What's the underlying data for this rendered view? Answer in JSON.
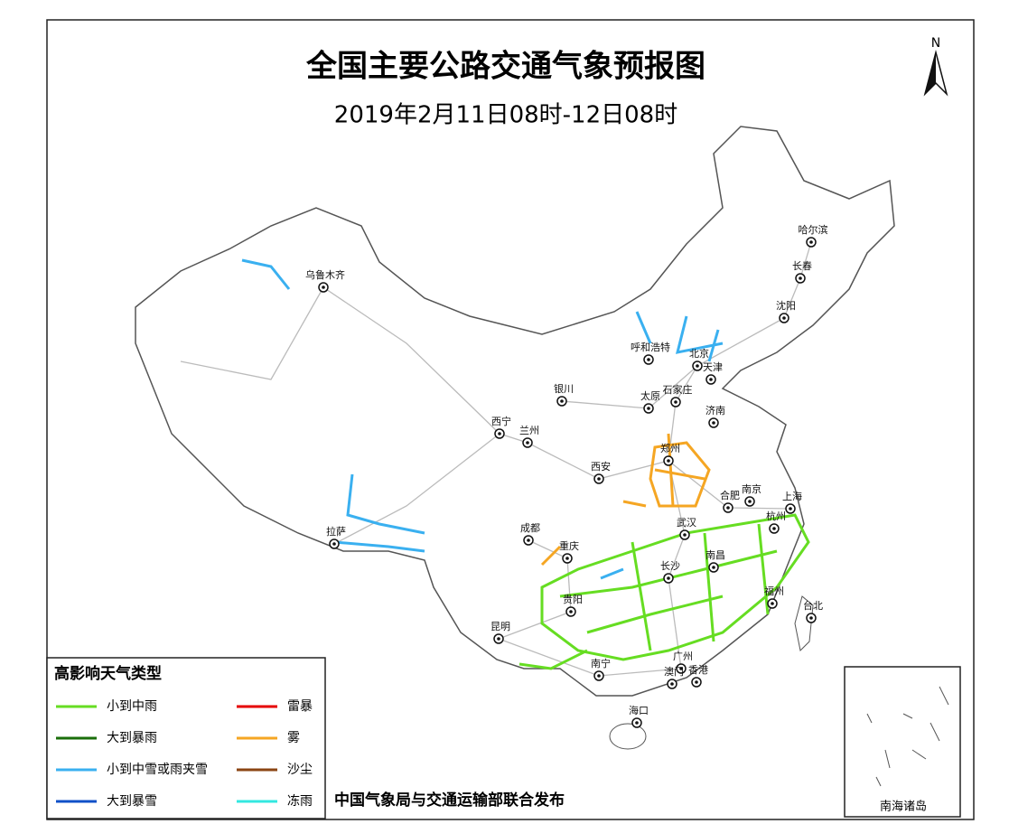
{
  "header": {
    "title": "全国主要公路交通气象预报图",
    "subtitle": "2019年2月11日08时-12日08时",
    "north": "N"
  },
  "cities": [
    "乌鲁木齐",
    "哈尔滨",
    "长春",
    "沈阳",
    "呼和浩特",
    "北京",
    "天津",
    "银川",
    "太原",
    "石家庄",
    "济南",
    "西宁",
    "兰州",
    "郑州",
    "西安",
    "合肥",
    "南京",
    "上海",
    "武汉",
    "杭州",
    "成都",
    "重庆",
    "拉萨",
    "长沙",
    "南昌",
    "福州",
    "贵阳",
    "台北",
    "昆明",
    "南宁",
    "广州",
    "澳门",
    "香港",
    "海口"
  ],
  "legend": {
    "title": "高影响天气类型",
    "items": [
      {
        "name": "小到中雨",
        "color": "#66dd22"
      },
      {
        "name": "大到暴雨",
        "color": "#1a6e0a"
      },
      {
        "name": "小到中雪或雨夹雪",
        "color": "#3ab0f0"
      },
      {
        "name": "大到暴雪",
        "color": "#1050c8"
      },
      {
        "name": "雷暴",
        "color": "#e60000"
      },
      {
        "name": "雾",
        "color": "#f5a623"
      },
      {
        "name": "沙尘",
        "color": "#8b4513"
      },
      {
        "name": "冻雨",
        "color": "#33e8e0"
      }
    ]
  },
  "footer": {
    "publisher": "中国气象局与交通运输部联合发布",
    "inset_label": "南海诸岛"
  }
}
